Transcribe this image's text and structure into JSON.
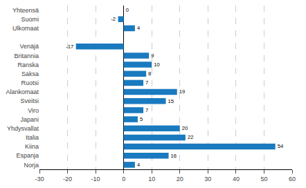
{
  "chart_data": {
    "type": "bar",
    "orientation": "horizontal",
    "categories": [
      "Yhteensä",
      "Suomi",
      "Ulkomaat",
      null,
      "Venäjä",
      "Britannia",
      "Ranska",
      "Saksa",
      "Ruotsi",
      "Alankomaat",
      "Sveitsi",
      "Viro",
      "Japani",
      "Yhdysvallat",
      "Italia",
      "Kiina",
      "Espanja",
      "Norja"
    ],
    "values": [
      0,
      -2,
      4,
      null,
      -17,
      9,
      10,
      8,
      7,
      19,
      15,
      7,
      5,
      20,
      22,
      54,
      16,
      4
    ],
    "color": "#1a7abf",
    "xlim": [
      -30,
      60
    ],
    "xticks": [
      -30,
      -20,
      -10,
      0,
      10,
      20,
      30,
      40,
      50,
      60
    ],
    "grid": true,
    "data_labels": true
  }
}
